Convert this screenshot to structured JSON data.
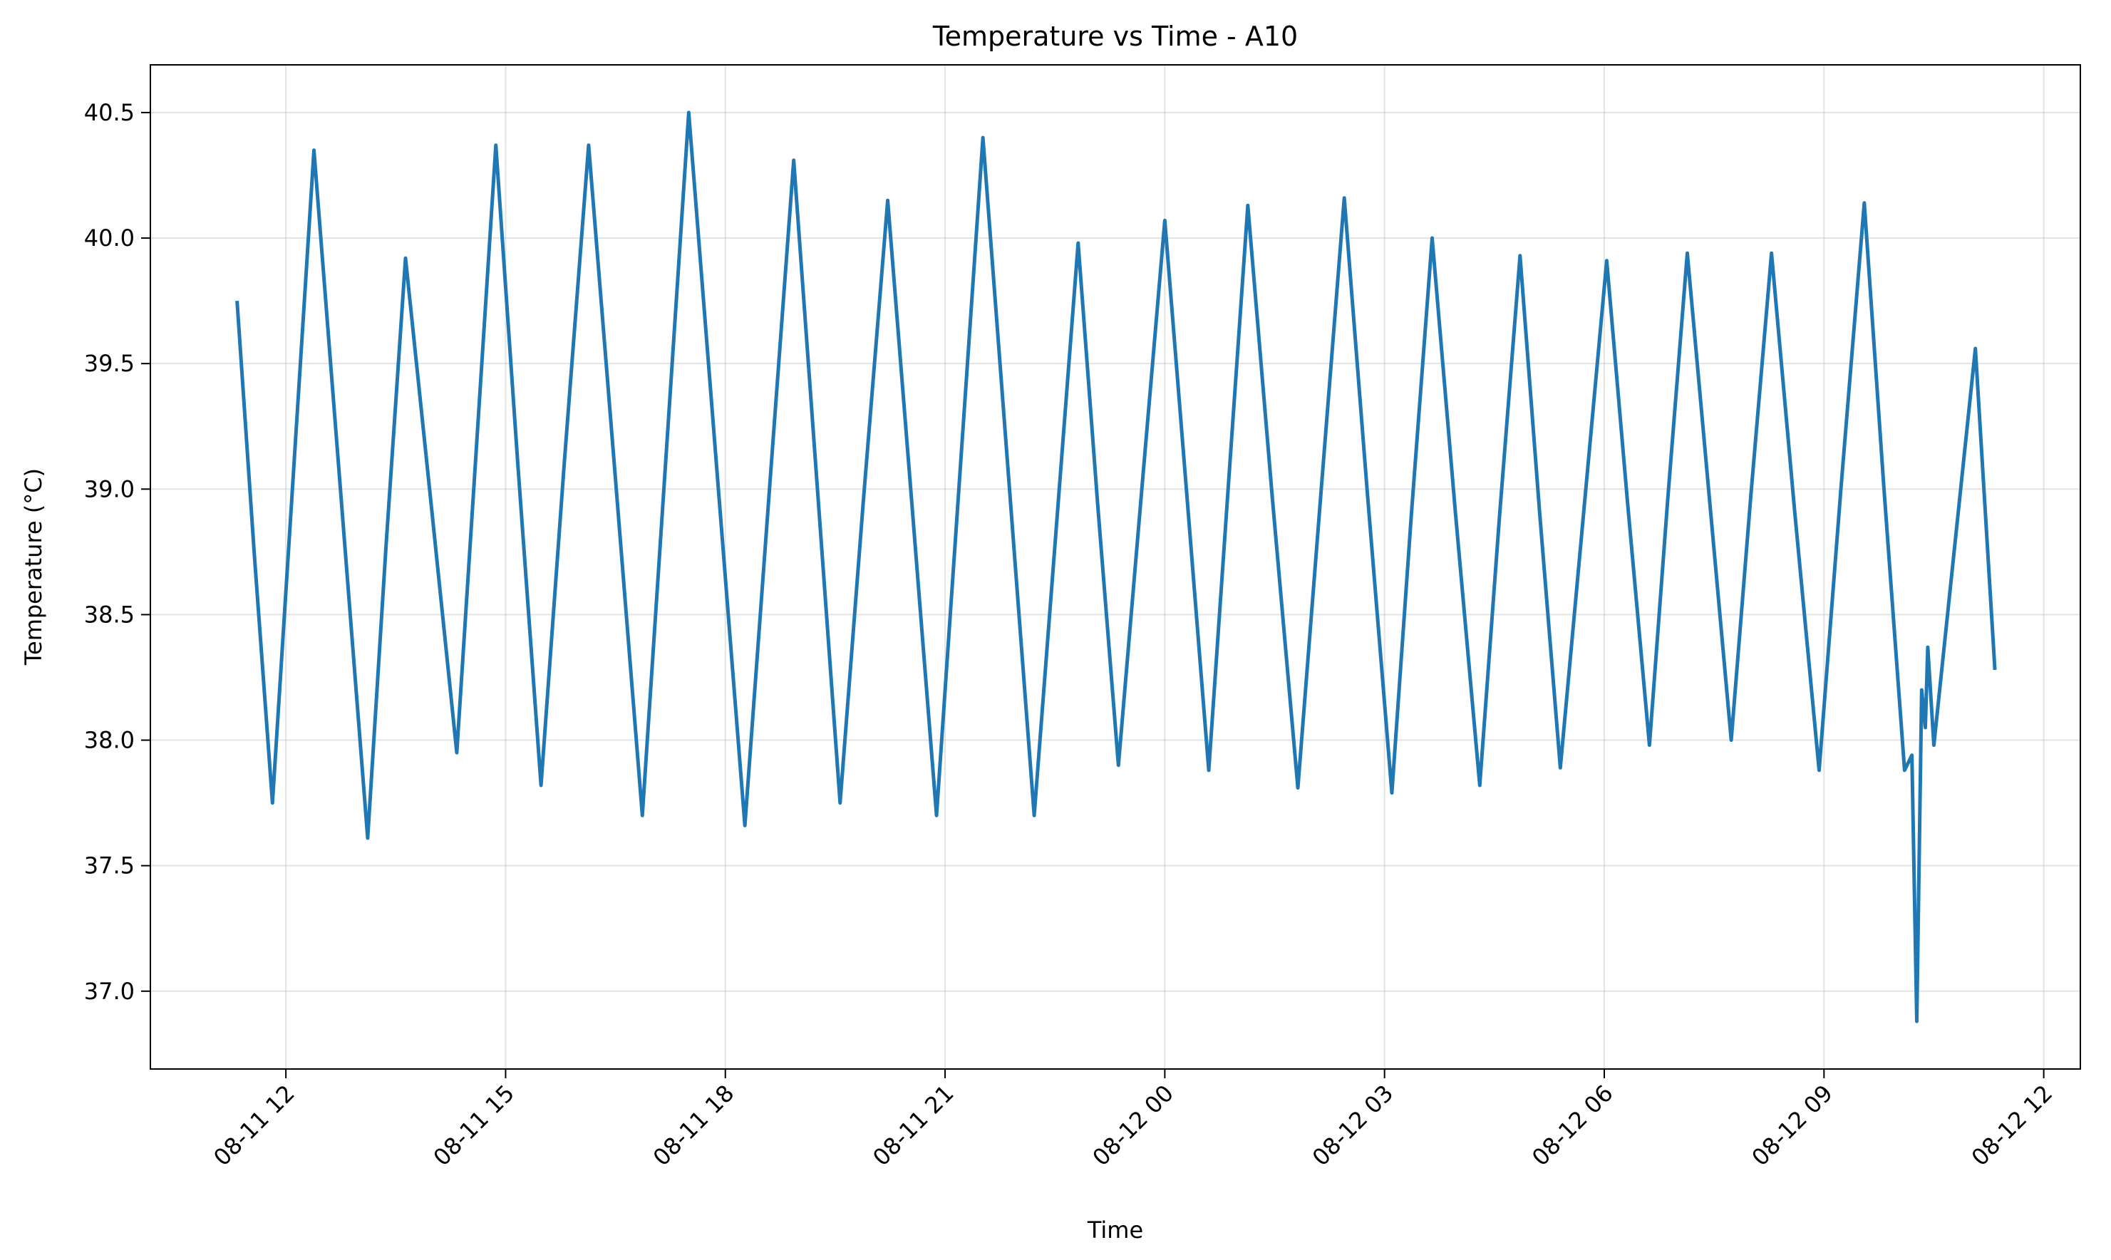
{
  "chart_data": {
    "type": "line",
    "title": "Temperature vs Time - A10",
    "xlabel": "Time",
    "ylabel": "Temperature (°C)",
    "color": "#1f77b4",
    "grid": true,
    "x": [
      "08-11 11:20",
      "08-11 11:34",
      "08-11 11:49",
      "08-11 12:06",
      "08-11 12:23",
      "08-11 12:45",
      "08-11 13:07",
      "08-11 13:22",
      "08-11 13:38",
      "08-11 13:59",
      "08-11 14:20",
      "08-11 14:36",
      "08-11 14:52",
      "08-11 15:10",
      "08-11 15:29",
      "08-11 15:48",
      "08-11 16:08",
      "08-11 16:30",
      "08-11 16:52",
      "08-11 17:11",
      "08-11 17:30",
      "08-11 17:53",
      "08-11 18:16",
      "08-11 18:36",
      "08-11 18:56",
      "08-11 19:15",
      "08-11 19:34",
      "08-11 19:53",
      "08-11 20:13",
      "08-11 20:33",
      "08-11 20:53",
      "08-11 21:12",
      "08-11 21:31",
      "08-11 21:52",
      "08-11 22:13",
      "08-11 22:31",
      "08-11 22:49",
      "08-11 23:05",
      "08-11 23:22",
      "08-11 23:41",
      "08-12 00:00",
      "08-12 00:18",
      "08-12 00:36",
      "08-12 00:52",
      "08-12 01:08",
      "08-12 01:28",
      "08-12 01:49",
      "08-12 02:08",
      "08-12 02:27",
      "08-12 02:46",
      "08-12 03:06",
      "08-12 03:22",
      "08-12 03:39",
      "08-12 03:58",
      "08-12 04:18",
      "08-12 04:34",
      "08-12 04:51",
      "08-12 05:07",
      "08-12 05:24",
      "08-12 05:43",
      "08-12 06:02",
      "08-12 06:19",
      "08-12 06:37",
      "08-12 06:52",
      "08-12 07:08",
      "08-12 07:26",
      "08-12 07:44",
      "08-12 08:00",
      "08-12 08:17",
      "08-12 08:36",
      "08-12 08:56",
      "08-12 09:14",
      "08-12 09:33",
      "08-12 09:49",
      "08-12 10:06",
      "08-12 10:12",
      "08-12 10:16",
      "08-12 10:20",
      "08-12 10:23",
      "08-12 10:25",
      "08-12 10:30",
      "08-12 10:47",
      "08-12 11:04",
      "08-12 11:12",
      "08-12 11:20"
    ],
    "values": [
      39.75,
      38.75,
      37.75,
      39.05,
      40.35,
      38.98,
      37.61,
      38.77,
      39.92,
      38.94,
      37.95,
      39.16,
      40.37,
      39.1,
      37.82,
      39.1,
      40.37,
      39.04,
      37.7,
      39.1,
      40.5,
      39.08,
      37.66,
      38.99,
      40.31,
      39.03,
      37.75,
      38.95,
      40.15,
      38.93,
      37.7,
      39.05,
      40.4,
      39.05,
      37.7,
      38.84,
      39.98,
      38.94,
      37.9,
      38.99,
      40.07,
      38.98,
      37.88,
      39.01,
      40.13,
      38.97,
      37.81,
      38.99,
      40.16,
      38.98,
      37.79,
      38.9,
      40.0,
      38.91,
      37.82,
      38.88,
      39.93,
      38.91,
      37.89,
      38.9,
      39.91,
      38.95,
      37.98,
      38.96,
      39.94,
      38.97,
      38.0,
      38.97,
      39.94,
      38.91,
      37.88,
      39.01,
      40.14,
      39.01,
      37.88,
      37.94,
      36.88,
      38.2,
      38.05,
      38.37,
      37.98,
      38.77,
      39.56,
      38.92,
      38.28
    ],
    "xlim": [
      "08-11 10:09",
      "08-12 12:30"
    ],
    "xticks": [
      {
        "value": "08-11 12:00",
        "label": "08-11 12"
      },
      {
        "value": "08-11 15:00",
        "label": "08-11 15"
      },
      {
        "value": "08-11 18:00",
        "label": "08-11 18"
      },
      {
        "value": "08-11 21:00",
        "label": "08-11 21"
      },
      {
        "value": "08-12 00:00",
        "label": "08-12 00"
      },
      {
        "value": "08-12 03:00",
        "label": "08-12 03"
      },
      {
        "value": "08-12 06:00",
        "label": "08-12 06"
      },
      {
        "value": "08-12 09:00",
        "label": "08-12 09"
      },
      {
        "value": "08-12 12:00",
        "label": "08-12 12"
      }
    ],
    "ylim": [
      36.69,
      40.69
    ],
    "yticks": [
      {
        "value": 37,
        "label": "37.0"
      },
      37.5,
      {
        "value": 38,
        "label": "38.0"
      },
      38.5,
      {
        "value": 39,
        "label": "39.0"
      },
      39.5,
      {
        "value": 40,
        "label": "40.0"
      },
      40.5
    ]
  }
}
